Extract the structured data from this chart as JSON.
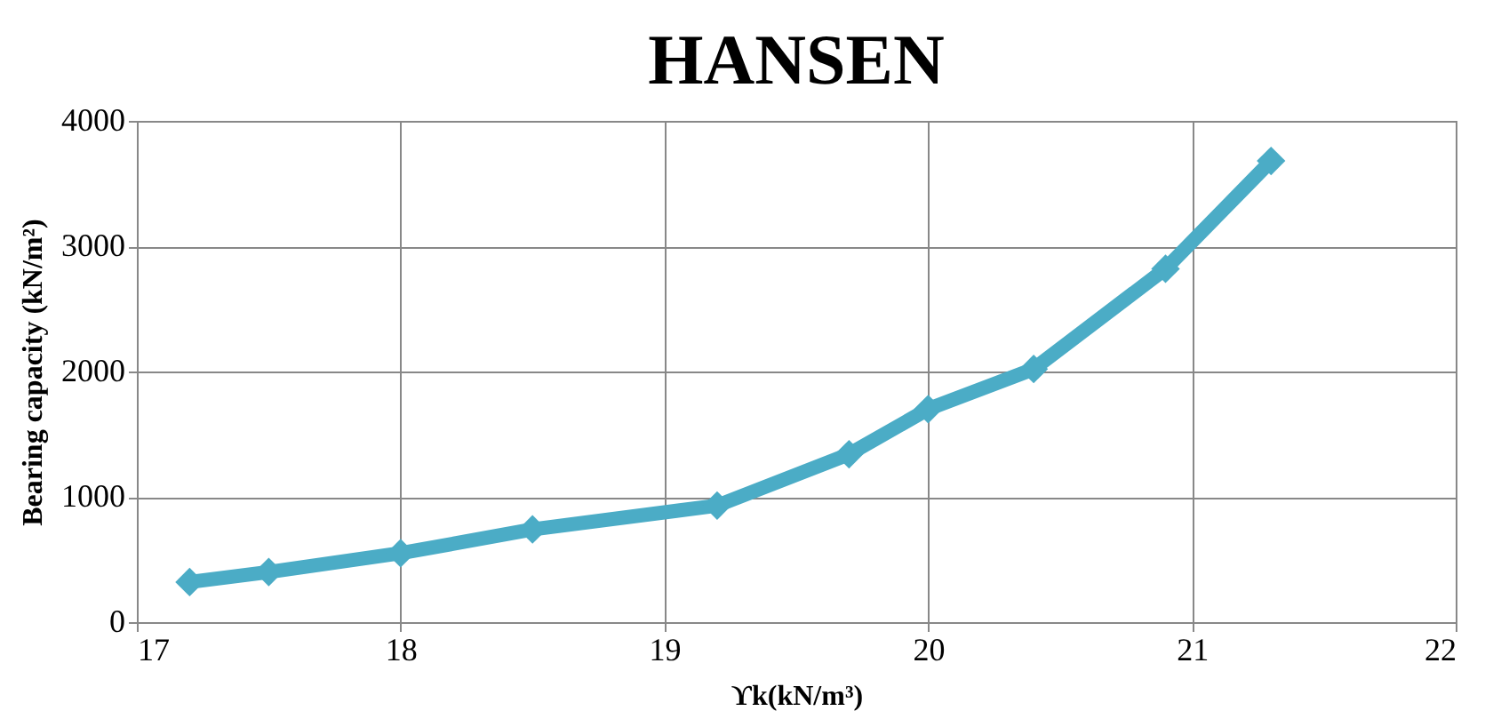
{
  "chart_data": {
    "type": "line",
    "title": "HANSEN",
    "xlabel": "ϒk(kN/m³)",
    "ylabel": "Bearing capacity (kN/m²)",
    "x": [
      17.2,
      17.5,
      18,
      18.5,
      19.2,
      19.7,
      20,
      20.4,
      20.9,
      21.3
    ],
    "series": [
      {
        "color": "#4bacc6",
        "values": [
          320,
          400,
          550,
          740,
          930,
          1340,
          1700,
          2020,
          2820,
          3680
        ]
      }
    ],
    "xlim": [
      17,
      22
    ],
    "xticks": [
      17,
      18,
      19,
      20,
      21,
      22
    ],
    "ylim": [
      0,
      4000
    ],
    "yticks": [
      0,
      1000,
      2000,
      3000,
      4000
    ],
    "grid": true,
    "marker": "diamond",
    "line_style": "solid"
  }
}
